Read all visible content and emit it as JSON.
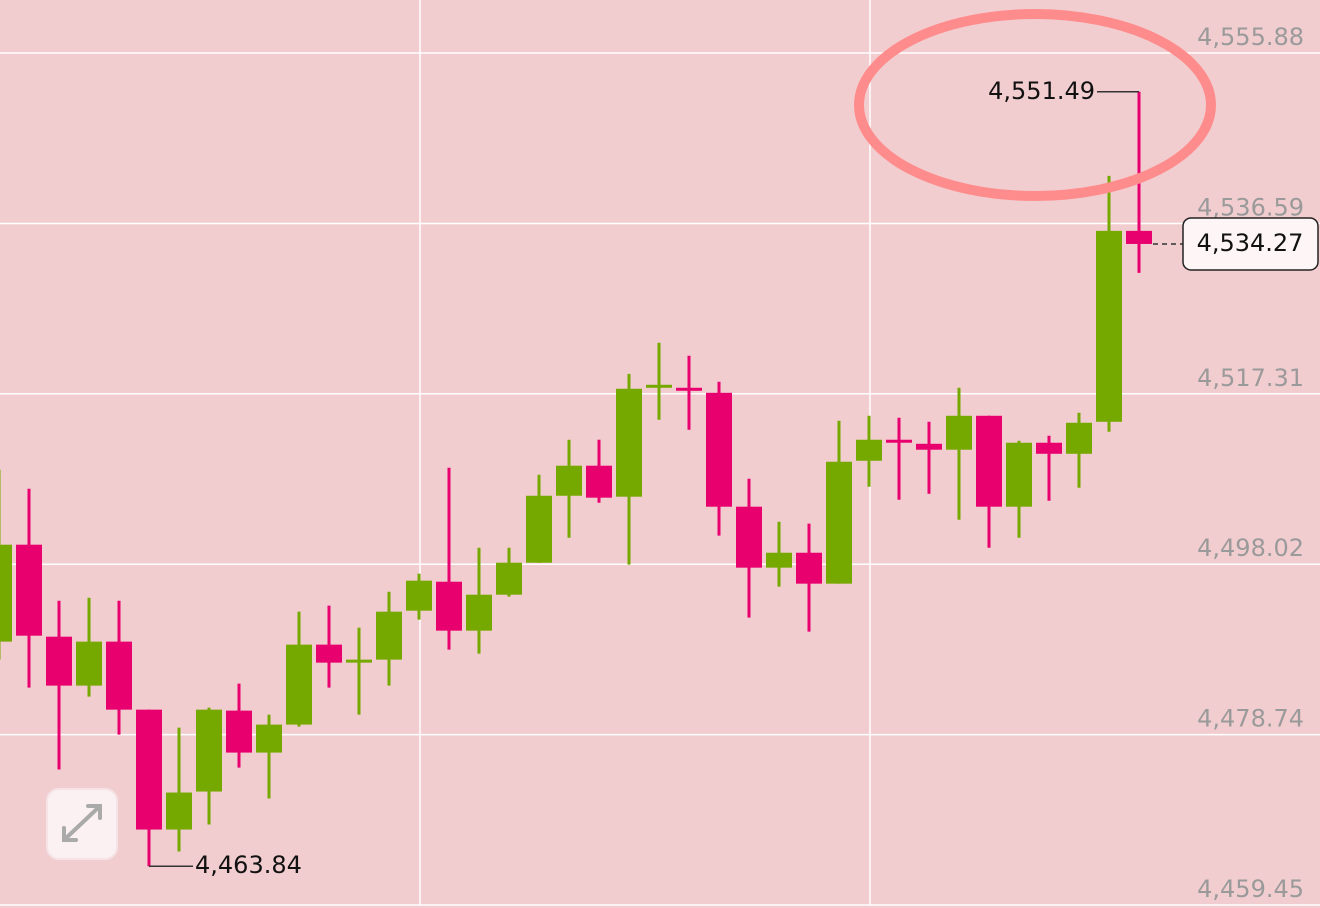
{
  "chart_data": {
    "type": "candlestick",
    "open": [
      4489.26,
      4500.23,
      4489.82,
      4484.28,
      4489.26,
      4481.56,
      4467.99,
      4472.29,
      4481.45,
      4476.7,
      4479.87,
      4488.92,
      4486.88,
      4487.22,
      4492.76,
      4496.04,
      4490.5,
      4494.57,
      4498.19,
      4505.77,
      4509.17,
      4505.66,
      4517.99,
      4517.99,
      4517.42,
      4504.53,
      4497.63,
      4499.32,
      4495.82,
      4509.73,
      4512.11,
      4511.65,
      4510.98,
      4514.82,
      4504.53,
      4511.77,
      4510.52,
      4514.14,
      4535.75
    ],
    "high": [
      4508.71,
      4506.56,
      4493.89,
      4494.23,
      4493.89,
      4481.56,
      4479.53,
      4481.79,
      4484.51,
      4481.0,
      4492.65,
      4493.33,
      4490.84,
      4494.91,
      4496.95,
      4508.94,
      4499.89,
      4499.89,
      4508.15,
      4512.11,
      4512.11,
      4519.57,
      4523.08,
      4521.61,
      4518.67,
      4507.7,
      4502.83,
      4502.61,
      4514.26,
      4514.82,
      4514.6,
      4514.14,
      4517.99,
      4514.82,
      4511.99,
      4512.56,
      4515.16,
      4541.97,
      4551.49
    ],
    "low": [
      4487.22,
      4484.05,
      4474.78,
      4483.03,
      4478.74,
      4463.84,
      4465.5,
      4468.56,
      4475.0,
      4471.5,
      4479.64,
      4484.05,
      4481.0,
      4484.28,
      4491.75,
      4488.35,
      4487.9,
      4494.35,
      4498.19,
      4501.02,
      4504.98,
      4497.97,
      4514.37,
      4513.24,
      4501.25,
      4491.97,
      4495.48,
      4490.39,
      4495.82,
      4506.79,
      4505.32,
      4506.0,
      4503.06,
      4499.89,
      4501.02,
      4505.21,
      4506.68,
      4513.01,
      4531.0
    ],
    "close": [
      4500.23,
      4489.93,
      4484.28,
      4489.26,
      4481.56,
      4467.99,
      4472.18,
      4481.56,
      4476.7,
      4479.87,
      4488.92,
      4486.88,
      4487.22,
      4492.65,
      4496.16,
      4490.5,
      4494.57,
      4498.19,
      4505.77,
      4509.17,
      4505.55,
      4517.88,
      4518.33,
      4517.65,
      4504.53,
      4497.63,
      4499.32,
      4495.82,
      4509.62,
      4512.11,
      4511.77,
      4510.98,
      4514.82,
      4504.53,
      4511.77,
      4510.52,
      4514.03,
      4535.75,
      4534.27
    ],
    "up_color": "#76a900",
    "down_color": "#e8006f",
    "ylim": [
      4459.45,
      4561.88
    ],
    "yticks": [
      {
        "value": 4555.88,
        "label": "4,555.88"
      },
      {
        "value": 4536.59,
        "label": "4,536.59"
      },
      {
        "value": 4517.31,
        "label": "4,517.31"
      },
      {
        "value": 4498.02,
        "label": "4,498.02"
      },
      {
        "value": 4478.74,
        "label": "4,478.74"
      },
      {
        "value": 4459.45,
        "label": "4,459.45"
      }
    ],
    "grid": true,
    "max_marker": {
      "value": 4551.49,
      "label": "4,551.49"
    },
    "min_marker": {
      "value": 4463.84,
      "label": "4,463.84"
    },
    "last_price": {
      "value": 4534.27,
      "label": "4,534.27"
    }
  }
}
